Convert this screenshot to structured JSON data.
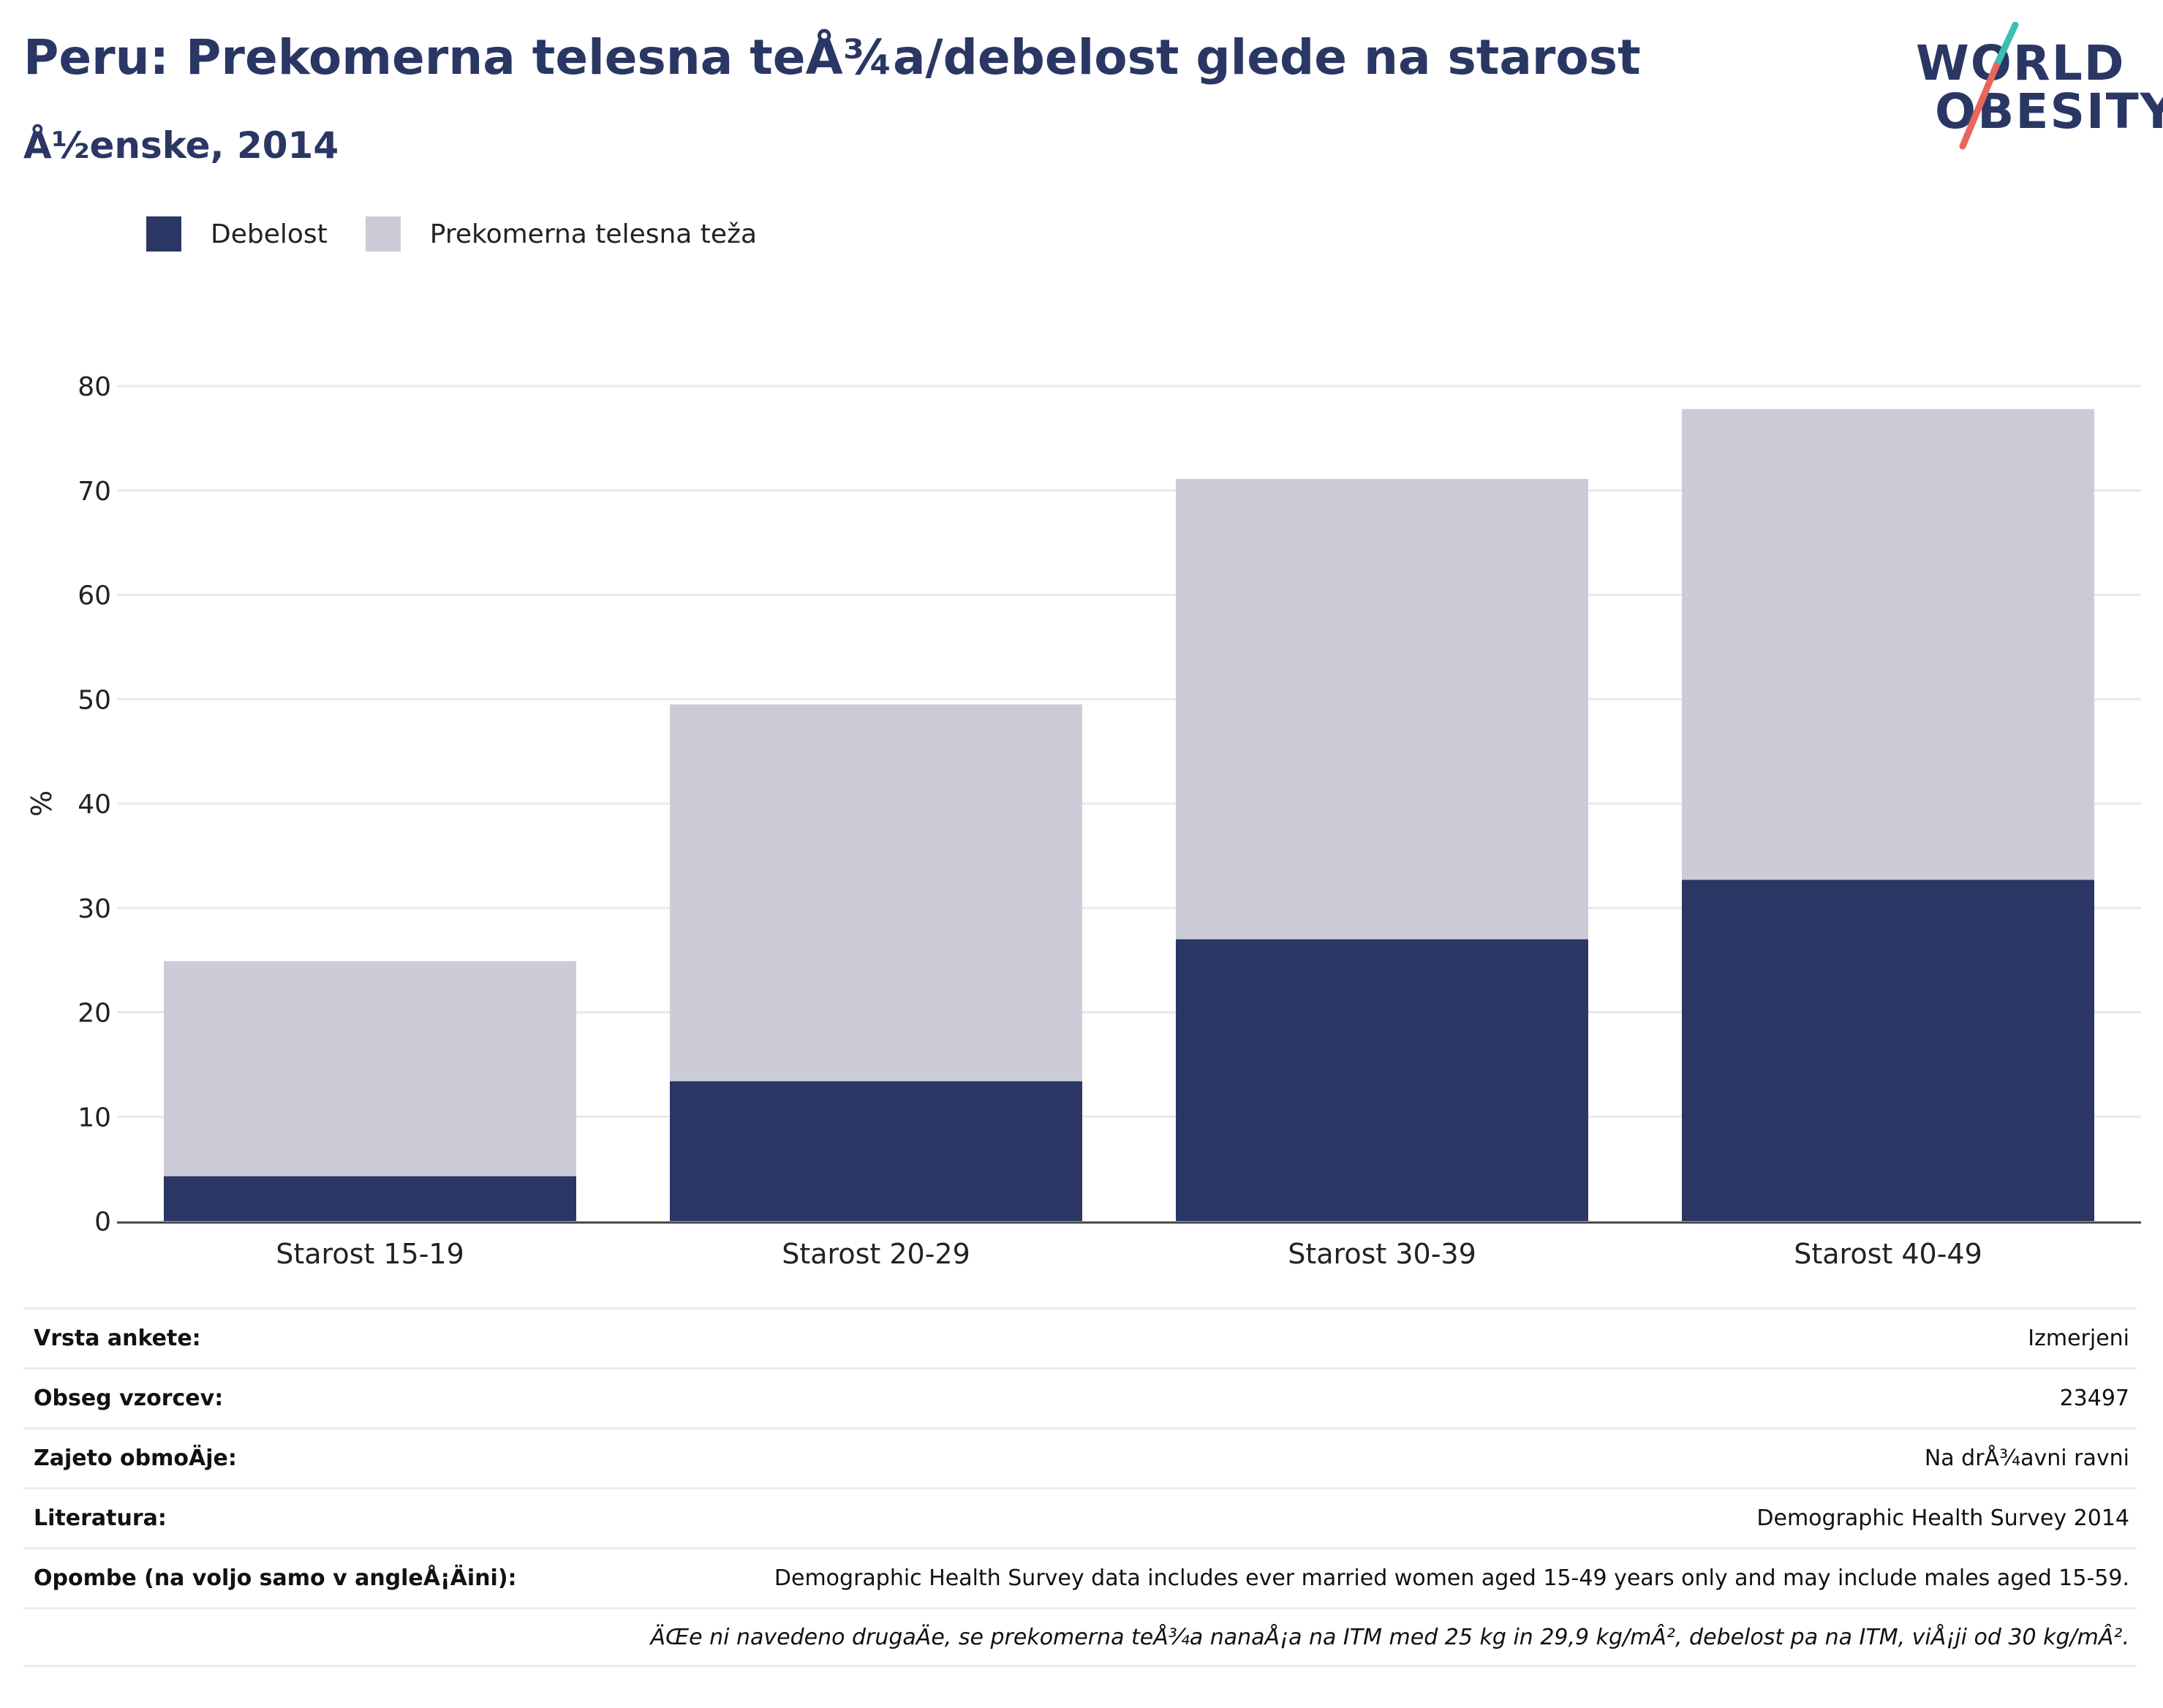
{
  "header": {
    "title": "Peru: Prekomerna telesna teÅ¾a/debelost glede na starost",
    "subtitle": "Å½enske, 2014"
  },
  "logo": {
    "line1": "WORLD",
    "line2": "OBESITY",
    "colors": {
      "text": "#2a3764",
      "slash_top": "#3bbfb4",
      "slash_bottom": "#e8665a"
    }
  },
  "legend": {
    "items": [
      {
        "label": "Debelost",
        "color": "#2a3764"
      },
      {
        "label": "Prekomerna telesna teža",
        "color": "#cbccd7"
      }
    ]
  },
  "chart_data": {
    "type": "bar",
    "stacked": true,
    "categories": [
      "Starost 15-19",
      "Starost 20-29",
      "Starost 30-39",
      "Starost 40-49"
    ],
    "series": [
      {
        "name": "Debelost",
        "values": [
          4.3,
          13.4,
          27.0,
          32.7
        ],
        "color": "#2a3764"
      },
      {
        "name": "Prekomerna telesna teža",
        "values": [
          20.6,
          36.1,
          44.1,
          45.1
        ],
        "color": "#cbccd7"
      }
    ],
    "ylabel": "%",
    "ylim": [
      0,
      80
    ],
    "yticks": [
      0,
      10,
      20,
      30,
      40,
      50,
      60,
      70,
      80
    ],
    "grid": true,
    "legend_position": "top-left"
  },
  "info": {
    "rows": [
      {
        "label": "Vrsta ankete:",
        "value": "Izmerjeni"
      },
      {
        "label": "Obseg vzorcev:",
        "value": "23497"
      },
      {
        "label": "Zajeto obmoÄje:",
        "value": "Na drÅ¾avni ravni"
      },
      {
        "label": "Literatura:",
        "value": "Demographic Health Survey 2014"
      },
      {
        "label": "Opombe (na voljo samo v angleÅ¡Äini):",
        "value": "Demographic Health Survey data includes ever married women aged 15-49 years only and may include males aged 15-59."
      }
    ],
    "footnote": "ÄŒe ni navedeno drugaÄe, se prekomerna teÅ¾a nanaÅ¡a na ITM med 25 kg in 29,9 kg/mÂ², debelost pa na ITM, viÅ¡ji od 30 kg/mÂ²."
  }
}
